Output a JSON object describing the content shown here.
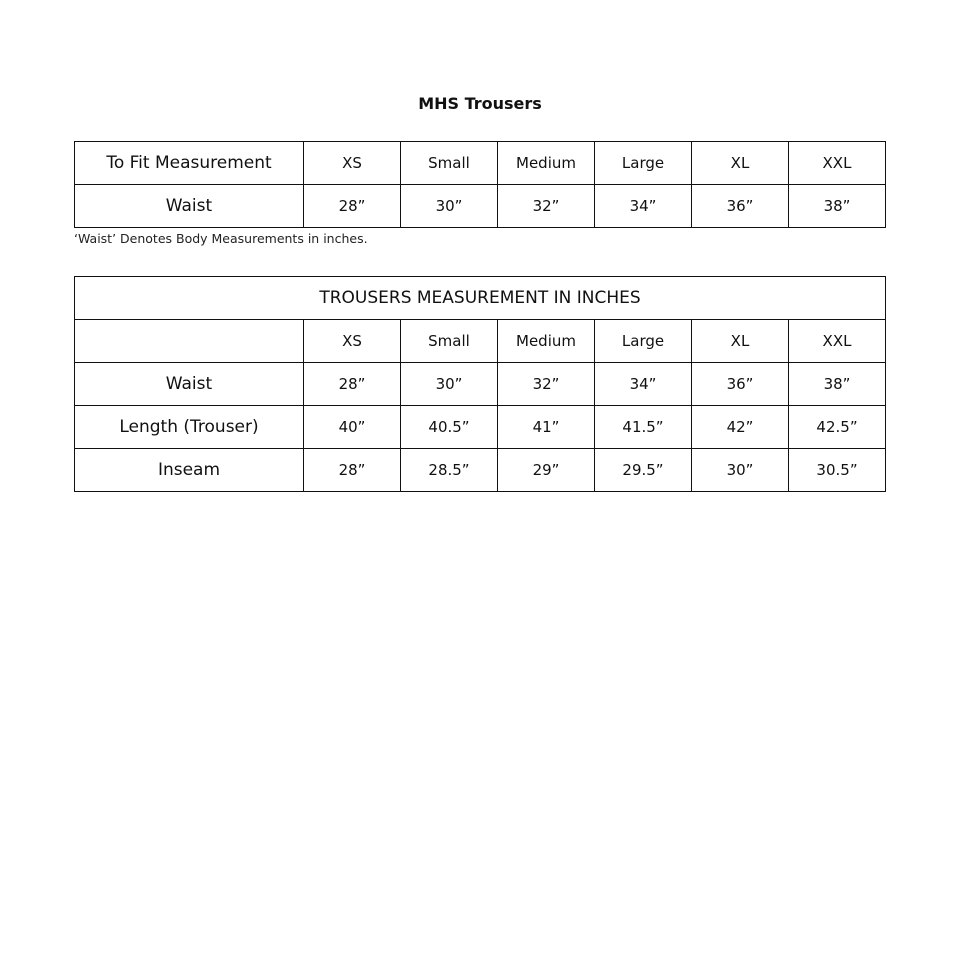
{
  "title": "MHS Trousers",
  "table1": {
    "header": [
      "To Fit Measurement",
      "XS",
      "Small",
      "Medium",
      "Large",
      "XL",
      "XXL"
    ],
    "rows": [
      [
        "Waist",
        "28”",
        "30”",
        "32”",
        "34”",
        "36”",
        "38”"
      ]
    ]
  },
  "note": "‘Waist’ Denotes Body Measurements in inches.",
  "table2": {
    "title": "TROUSERS MEASUREMENT IN INCHES",
    "header": [
      "",
      "XS",
      "Small",
      "Medium",
      "Large",
      "XL",
      "XXL"
    ],
    "rows": [
      [
        "Waist",
        "28”",
        "30”",
        "32”",
        "34”",
        "36”",
        "38”"
      ],
      [
        "Length (Trouser)",
        "40”",
        "40.5”",
        "41”",
        "41.5”",
        "42”",
        "42.5”"
      ],
      [
        "Inseam",
        "28”",
        "28.5”",
        "29”",
        "29.5”",
        "30”",
        "30.5”"
      ]
    ]
  }
}
